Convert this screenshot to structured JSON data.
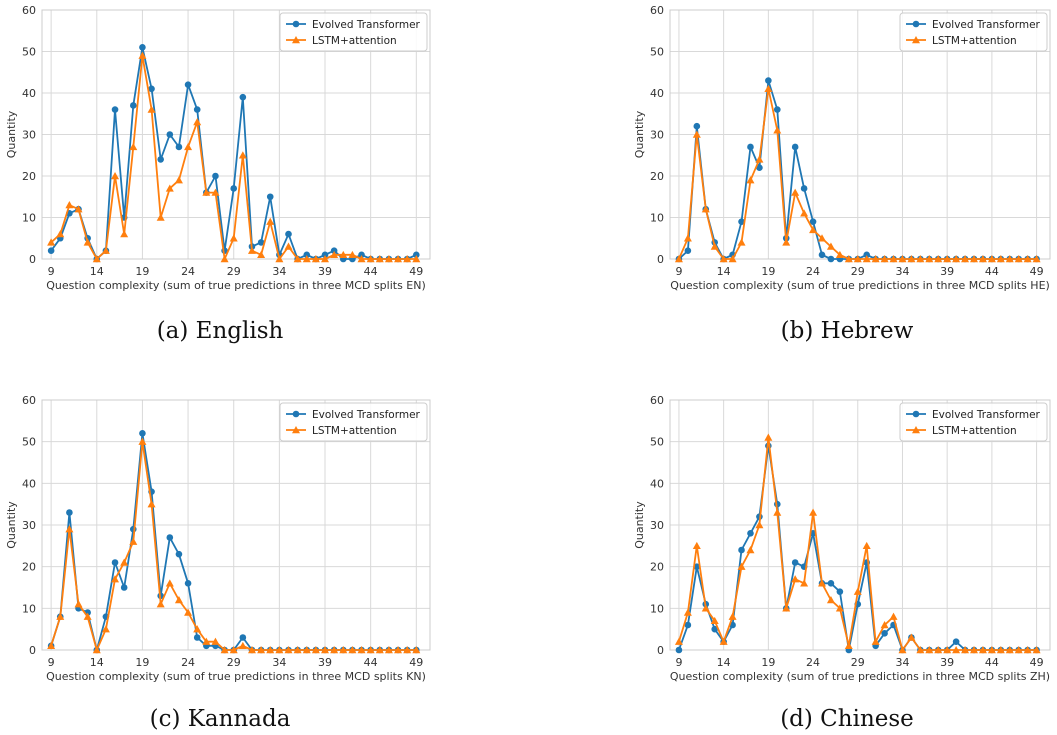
{
  "colors": {
    "series_1": "#1f77b4",
    "series_2": "#ff7f0e",
    "grid": "#d9d9d9",
    "axis": "#cccccc"
  },
  "captions": [
    "(a) English",
    "(b) Hebrew",
    "(c) Kannada",
    "(d) Chinese"
  ],
  "chart_data": [
    {
      "type": "line",
      "xlabel": "Question complexity (sum of true predictions in three MCD splits EN)",
      "ylabel": "Quantity",
      "x_ticks": [
        9,
        14,
        19,
        24,
        29,
        34,
        39,
        44,
        49
      ],
      "y_ticks": [
        0,
        10,
        20,
        30,
        40,
        50,
        60
      ],
      "xlim": [
        8,
        50.5
      ],
      "ylim": [
        0,
        60
      ],
      "grid": true,
      "legend_position": "top-right",
      "x": [
        9,
        10,
        11,
        12,
        13,
        14,
        15,
        16,
        17,
        18,
        19,
        20,
        21,
        22,
        23,
        24,
        25,
        26,
        27,
        28,
        29,
        30,
        31,
        32,
        33,
        34,
        35,
        36,
        37,
        38,
        39,
        40,
        41,
        42,
        43,
        44,
        45,
        46,
        47,
        48,
        49
      ],
      "series": [
        {
          "name": "Evolved Transformer",
          "marker": "circle",
          "values": [
            2,
            5,
            11,
            12,
            5,
            0,
            2,
            36,
            10,
            37,
            51,
            41,
            24,
            30,
            27,
            42,
            36,
            16,
            20,
            2,
            17,
            39,
            3,
            4,
            15,
            1,
            6,
            0,
            1,
            0,
            1,
            2,
            0,
            0,
            1,
            0,
            0,
            0,
            0,
            0,
            1
          ]
        },
        {
          "name": "LSTM+attention",
          "marker": "triangle",
          "values": [
            4,
            6,
            13,
            12,
            4,
            0,
            2,
            20,
            6,
            27,
            49,
            36,
            10,
            17,
            19,
            27,
            33,
            16,
            16,
            0,
            5,
            25,
            2,
            1,
            9,
            0,
            3,
            0,
            0,
            0,
            0,
            1,
            1,
            1,
            0,
            0,
            0,
            0,
            0,
            0,
            0
          ]
        }
      ]
    },
    {
      "type": "line",
      "xlabel": "Question complexity (sum of true predictions in three MCD splits HE)",
      "ylabel": "Quantity",
      "x_ticks": [
        9,
        14,
        19,
        24,
        29,
        34,
        39,
        44,
        49
      ],
      "y_ticks": [
        0,
        10,
        20,
        30,
        40,
        50,
        60
      ],
      "xlim": [
        8,
        50.5
      ],
      "ylim": [
        0,
        60
      ],
      "grid": true,
      "legend_position": "top-right",
      "x": [
        9,
        10,
        11,
        12,
        13,
        14,
        15,
        16,
        17,
        18,
        19,
        20,
        21,
        22,
        23,
        24,
        25,
        26,
        27,
        28,
        29,
        30,
        31,
        32,
        33,
        34,
        35,
        36,
        37,
        38,
        39,
        40,
        41,
        42,
        43,
        44,
        45,
        46,
        47,
        48,
        49
      ],
      "series": [
        {
          "name": "Evolved Transformer",
          "marker": "circle",
          "values": [
            0,
            2,
            32,
            12,
            4,
            0,
            1,
            9,
            27,
            22,
            43,
            36,
            5,
            27,
            17,
            9,
            1,
            0,
            0,
            0,
            0,
            1,
            0,
            0,
            0,
            0,
            0,
            0,
            0,
            0,
            0,
            0,
            0,
            0,
            0,
            0,
            0,
            0,
            0,
            0,
            0
          ]
        },
        {
          "name": "LSTM+attention",
          "marker": "triangle",
          "values": [
            0,
            5,
            30,
            12,
            3,
            0,
            0,
            4,
            19,
            24,
            41,
            31,
            4,
            16,
            11,
            7,
            5,
            3,
            1,
            0,
            0,
            0,
            0,
            0,
            0,
            0,
            0,
            0,
            0,
            0,
            0,
            0,
            0,
            0,
            0,
            0,
            0,
            0,
            0,
            0,
            0
          ]
        }
      ]
    },
    {
      "type": "line",
      "xlabel": "Question complexity (sum of true predictions in three MCD splits KN)",
      "ylabel": "Quantity",
      "x_ticks": [
        9,
        14,
        19,
        24,
        29,
        34,
        39,
        44,
        49
      ],
      "y_ticks": [
        0,
        10,
        20,
        30,
        40,
        50,
        60
      ],
      "xlim": [
        8,
        50.5
      ],
      "ylim": [
        0,
        60
      ],
      "grid": true,
      "legend_position": "top-right",
      "x": [
        9,
        10,
        11,
        12,
        13,
        14,
        15,
        16,
        17,
        18,
        19,
        20,
        21,
        22,
        23,
        24,
        25,
        26,
        27,
        28,
        29,
        30,
        31,
        32,
        33,
        34,
        35,
        36,
        37,
        38,
        39,
        40,
        41,
        42,
        43,
        44,
        45,
        46,
        47,
        48,
        49
      ],
      "series": [
        {
          "name": "Evolved Transformer",
          "marker": "circle",
          "values": [
            1,
            8,
            33,
            10,
            9,
            0,
            8,
            21,
            15,
            29,
            52,
            38,
            13,
            27,
            23,
            16,
            3,
            1,
            1,
            0,
            0,
            3,
            0,
            0,
            0,
            0,
            0,
            0,
            0,
            0,
            0,
            0,
            0,
            0,
            0,
            0,
            0,
            0,
            0,
            0,
            0
          ]
        },
        {
          "name": "LSTM+attention",
          "marker": "triangle",
          "values": [
            1,
            8,
            29,
            11,
            8,
            0,
            5,
            17,
            21,
            26,
            50,
            35,
            11,
            16,
            12,
            9,
            5,
            2,
            2,
            0,
            0,
            1,
            0,
            0,
            0,
            0,
            0,
            0,
            0,
            0,
            0,
            0,
            0,
            0,
            0,
            0,
            0,
            0,
            0,
            0,
            0
          ]
        }
      ]
    },
    {
      "type": "line",
      "xlabel": "Question complexity (sum of true predictions in three MCD splits ZH)",
      "ylabel": "Quantity",
      "x_ticks": [
        9,
        14,
        19,
        24,
        29,
        34,
        39,
        44,
        49
      ],
      "y_ticks": [
        0,
        10,
        20,
        30,
        40,
        50,
        60
      ],
      "xlim": [
        8,
        50.5
      ],
      "ylim": [
        0,
        60
      ],
      "grid": true,
      "legend_position": "top-right",
      "x": [
        9,
        10,
        11,
        12,
        13,
        14,
        15,
        16,
        17,
        18,
        19,
        20,
        21,
        22,
        23,
        24,
        25,
        26,
        27,
        28,
        29,
        30,
        31,
        32,
        33,
        34,
        35,
        36,
        37,
        38,
        39,
        40,
        41,
        42,
        43,
        44,
        45,
        46,
        47,
        48,
        49
      ],
      "series": [
        {
          "name": "Evolved Transformer",
          "marker": "circle",
          "values": [
            0,
            6,
            20,
            11,
            5,
            2,
            6,
            24,
            28,
            32,
            49,
            35,
            10,
            21,
            20,
            28,
            16,
            16,
            14,
            0,
            11,
            21,
            1,
            4,
            6,
            0,
            3,
            0,
            0,
            0,
            0,
            2,
            0,
            0,
            0,
            0,
            0,
            0,
            0,
            0,
            0
          ]
        },
        {
          "name": "LSTM+attention",
          "marker": "triangle",
          "values": [
            2,
            9,
            25,
            10,
            7,
            2,
            8,
            20,
            24,
            30,
            51,
            33,
            10,
            17,
            16,
            33,
            16,
            12,
            10,
            1,
            14,
            25,
            2,
            6,
            8,
            0,
            3,
            0,
            0,
            0,
            0,
            0,
            0,
            0,
            0,
            0,
            0,
            0,
            0,
            0,
            0
          ]
        }
      ]
    }
  ]
}
